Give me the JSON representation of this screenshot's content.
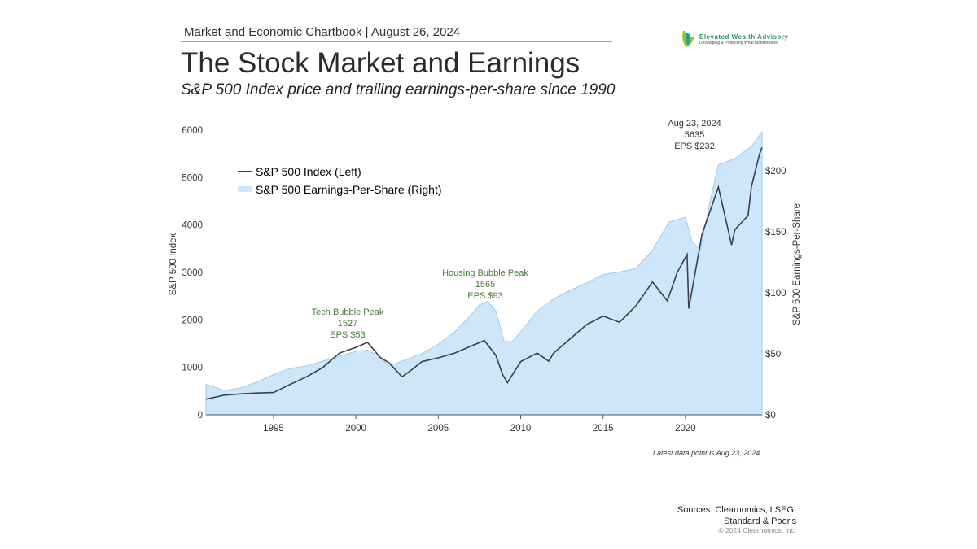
{
  "header": {
    "chartbook": "Market and Economic Chartbook | August 26, 2024",
    "title": "The Stock Market and Earnings",
    "subtitle": "S&P 500 Index price and trailing earnings-per-share since 1990"
  },
  "logo": {
    "name": "Elevated Wealth Advisory",
    "tagline": "Developing & Protecting What Matters Most"
  },
  "footer": {
    "latest": "Latest data point is Aug 23, 2024",
    "sources_line1": "Sources: Clearnomics, LSEG,",
    "sources_line2": "Standard & Poor's",
    "copyright": "© 2024 Clearnomics, Inc."
  },
  "colors": {
    "index_line": "#3a3f4a",
    "eps_fill": "#cde6f9",
    "eps_edge": "#9ccbef",
    "annotation": "#4a7a3c"
  },
  "chart_data": {
    "type": "line+area",
    "xlim": [
      1990.9,
      2024.65
    ],
    "ylim_left": [
      0,
      6000
    ],
    "ylim_right": [
      0,
      240
    ],
    "ylabel_left": "S&P 500 Index",
    "ylabel_right": "S&P 500 Earnings-Per-Share",
    "xticks": [
      1995,
      2000,
      2005,
      2010,
      2015,
      2020
    ],
    "yticks_left": [
      0,
      1000,
      2000,
      3000,
      4000,
      5000,
      6000
    ],
    "yticks_right": [
      {
        "v": 0,
        "label": "$0"
      },
      {
        "v": 50,
        "label": "$50"
      },
      {
        "v": 100,
        "label": "$100"
      },
      {
        "v": 150,
        "label": "$150"
      },
      {
        "v": 200,
        "label": "$200"
      }
    ],
    "grid": false,
    "legend_placement": "top-left",
    "legend": [
      "S&P 500 Index (Left)",
      "S&P 500 Earnings-Per-Share (Right)"
    ],
    "series": [
      {
        "name": "S&P 500 Index (Left)",
        "axis": "left",
        "type": "line",
        "x": [
          1990.9,
          1992,
          1993,
          1994,
          1995,
          1996,
          1997,
          1998,
          1999,
          2000,
          2000.7,
          2001.5,
          2002,
          2002.8,
          2003.5,
          2004,
          2005,
          2006,
          2007,
          2007.8,
          2008.5,
          2008.9,
          2009.2,
          2010,
          2011,
          2011.7,
          2012,
          2013,
          2014,
          2015,
          2016,
          2017,
          2018,
          2018.9,
          2019.5,
          2020.1,
          2020.2,
          2020.8,
          2021,
          2022,
          2022.8,
          2023,
          2023.8,
          2024,
          2024.5,
          2024.65
        ],
        "y": [
          330,
          415,
          440,
          460,
          470,
          640,
          800,
          1000,
          1300,
          1420,
          1527,
          1200,
          1100,
          800,
          980,
          1120,
          1200,
          1300,
          1450,
          1565,
          1250,
          850,
          680,
          1120,
          1300,
          1130,
          1300,
          1600,
          1900,
          2080,
          1950,
          2300,
          2800,
          2400,
          3000,
          3380,
          2240,
          3400,
          3800,
          4800,
          3580,
          3900,
          4200,
          4800,
          5500,
          5635
        ]
      },
      {
        "name": "S&P 500 Earnings-Per-Share (Right)",
        "axis": "right",
        "type": "area",
        "x": [
          1990.9,
          1992,
          1993,
          1994,
          1995,
          1996,
          1997,
          1998,
          1999,
          2000,
          2000.7,
          2001.5,
          2002,
          2003,
          2004,
          2005,
          2006,
          2007,
          2007.5,
          2008,
          2008.5,
          2009,
          2009.5,
          2010,
          2011,
          2012,
          2013,
          2014,
          2015,
          2016,
          2017,
          2018,
          2019,
          2020,
          2020.4,
          2020.9,
          2021.5,
          2022,
          2023,
          2024,
          2024.65
        ],
        "y": [
          25,
          20,
          22,
          27,
          33,
          38,
          40,
          44,
          48,
          52,
          53,
          47,
          40,
          45,
          50,
          58,
          68,
          82,
          90,
          93,
          85,
          60,
          60,
          68,
          85,
          95,
          102,
          108,
          115,
          117,
          120,
          135,
          158,
          162,
          142,
          135,
          175,
          205,
          210,
          220,
          232
        ]
      }
    ],
    "annotations": [
      {
        "x": 2000.7,
        "lines": [
          "Tech Bubble Peak",
          "1527",
          "EPS $53"
        ]
      },
      {
        "x": 2007.8,
        "lines": [
          "Housing Bubble Peak",
          "1565",
          "EPS $93"
        ]
      },
      {
        "x": 2024.65,
        "lines": [
          "Aug 23, 2024",
          "5635",
          "EPS $232"
        ]
      }
    ]
  }
}
